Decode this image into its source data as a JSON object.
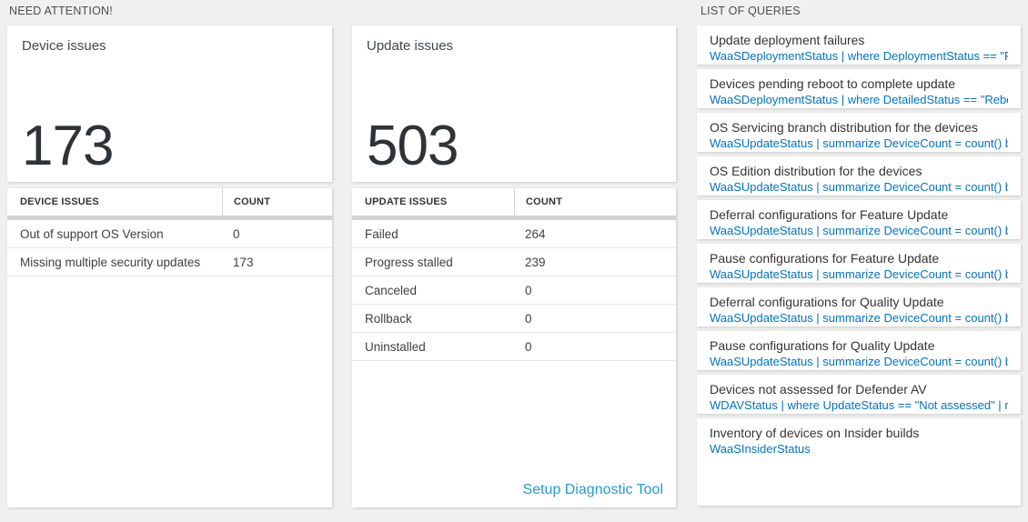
{
  "need_attention": {
    "header": "NEED ATTENTION!",
    "device_card": {
      "title": "Device issues",
      "count": "173",
      "columns": {
        "issue": "DEVICE ISSUES",
        "count": "COUNT"
      },
      "rows": [
        {
          "label": "Out of support OS Version",
          "count": "0"
        },
        {
          "label": "Missing multiple security updates",
          "count": "173"
        }
      ]
    },
    "update_card": {
      "title": "Update issues",
      "count": "503",
      "columns": {
        "issue": "UPDATE ISSUES",
        "count": "COUNT"
      },
      "rows": [
        {
          "label": "Failed",
          "count": "264"
        },
        {
          "label": "Progress stalled",
          "count": "239"
        },
        {
          "label": "Canceled",
          "count": "0"
        },
        {
          "label": "Rollback",
          "count": "0"
        },
        {
          "label": "Uninstalled",
          "count": "0"
        }
      ],
      "link_label": "Setup Diagnostic Tool"
    }
  },
  "queries": {
    "header": "LIST OF QUERIES",
    "items": [
      {
        "title": "Update deployment failures",
        "query": "WaaSDeploymentStatus | where DeploymentStatus == \"Failed\" |..."
      },
      {
        "title": "Devices pending reboot to complete update",
        "query": "WaaSDeploymentStatus | where DetailedStatus == \"Reboot pend..."
      },
      {
        "title": "OS Servicing branch distribution for the devices",
        "query": "WaaSUpdateStatus | summarize DeviceCount = count() by OSSer..."
      },
      {
        "title": "OS Edition distribution for the devices",
        "query": "WaaSUpdateStatus | summarize DeviceCount = count() by OSEdit..."
      },
      {
        "title": "Deferral configurations for Feature Update",
        "query": "WaaSUpdateStatus | summarize DeviceCount = count() by Featur..."
      },
      {
        "title": "Pause configurations for Feature Update",
        "query": "WaaSUpdateStatus | summarize DeviceCount = count() by Featur..."
      },
      {
        "title": "Deferral configurations for Quality Update",
        "query": "WaaSUpdateStatus | summarize DeviceCount = count() by Qualit..."
      },
      {
        "title": "Pause configurations for Quality Update",
        "query": "WaaSUpdateStatus | summarize DeviceCount = count() by Qualit..."
      },
      {
        "title": "Devices not assessed for Defender AV",
        "query": "WDAVStatus | where UpdateStatus == \"Not assessed\" | render ta..."
      },
      {
        "title": "Inventory of devices on Insider builds",
        "query": "WaaSInsiderStatus"
      }
    ]
  },
  "colors": {
    "page_background": "#f0f0ef",
    "card_background": "#ffffff",
    "big_number": "#2e3338",
    "query_text": "#0072c6",
    "action_link": "#2499d6",
    "table_divider": "#d3d3d3"
  }
}
